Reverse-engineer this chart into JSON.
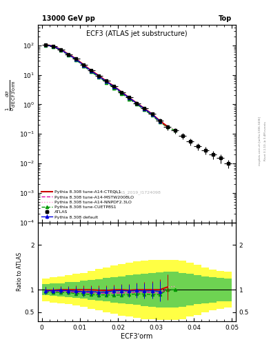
{
  "title_top": "ECF3 (ATLAS jet substructure)",
  "header_left": "13000 GeV pp",
  "header_right": "Top",
  "xlabel": "ECF3'orm",
  "ylabel_ratio": "Ratio to ATLAS",
  "watermark": "ATLAS_2019_I1724098",
  "right_label": "Rivet 3.1.10, ≥ 3.4M events",
  "right_label2": "mcplots.cern.ch [arXiv:1306.3436]",
  "atlas_x": [
    0.001,
    0.003,
    0.005,
    0.007,
    0.009,
    0.011,
    0.013,
    0.015,
    0.017,
    0.019,
    0.021,
    0.023,
    0.025,
    0.027,
    0.029,
    0.031,
    0.033,
    0.035,
    0.037,
    0.039,
    0.041,
    0.043,
    0.045,
    0.047,
    0.049
  ],
  "atlas_y": [
    105,
    95,
    72,
    50,
    35,
    22,
    14,
    9.5,
    6.2,
    4.1,
    2.6,
    1.7,
    1.1,
    0.72,
    0.47,
    0.28,
    0.17,
    0.13,
    0.085,
    0.055,
    0.038,
    0.028,
    0.02,
    0.015,
    0.01
  ],
  "atlas_xerr": [
    0.001,
    0.001,
    0.001,
    0.001,
    0.001,
    0.001,
    0.001,
    0.001,
    0.001,
    0.001,
    0.001,
    0.001,
    0.001,
    0.001,
    0.001,
    0.001,
    0.001,
    0.001,
    0.001,
    0.001,
    0.001,
    0.001,
    0.001,
    0.001,
    0.001
  ],
  "atlas_yerr_lo": [
    8,
    6,
    5,
    4,
    3,
    2.0,
    1.3,
    0.9,
    0.6,
    0.4,
    0.3,
    0.2,
    0.15,
    0.1,
    0.07,
    0.05,
    0.035,
    0.028,
    0.02,
    0.014,
    0.01,
    0.008,
    0.006,
    0.005,
    0.003
  ],
  "atlas_yerr_hi": [
    8,
    6,
    5,
    4,
    3,
    2.0,
    1.3,
    0.9,
    0.6,
    0.4,
    0.3,
    0.2,
    0.15,
    0.1,
    0.07,
    0.05,
    0.035,
    0.028,
    0.02,
    0.014,
    0.01,
    0.008,
    0.006,
    0.005,
    0.003
  ],
  "py_default_x": [
    0.001,
    0.003,
    0.005,
    0.007,
    0.009,
    0.011,
    0.013,
    0.015,
    0.017,
    0.019,
    0.021,
    0.023,
    0.025,
    0.027,
    0.029,
    0.031
  ],
  "py_default_y": [
    103,
    93,
    71,
    49,
    34,
    21,
    13.5,
    9.0,
    5.9,
    4.0,
    2.55,
    1.65,
    1.08,
    0.7,
    0.46,
    0.27
  ],
  "py_default_yerr": [
    4,
    3,
    2.5,
    2,
    1.5,
    1.0,
    0.7,
    0.5,
    0.35,
    0.25,
    0.18,
    0.13,
    0.09,
    0.07,
    0.05,
    0.04
  ],
  "py_cteql1_x": [
    0.001,
    0.003,
    0.005,
    0.007,
    0.009,
    0.011,
    0.013,
    0.015,
    0.017,
    0.019,
    0.021,
    0.023,
    0.025,
    0.027,
    0.029,
    0.031,
    0.033
  ],
  "py_cteql1_y": [
    104,
    94,
    72,
    50,
    35,
    22,
    14,
    9.4,
    6.1,
    4.1,
    2.6,
    1.68,
    1.1,
    0.72,
    0.47,
    0.28,
    0.18
  ],
  "py_cteql1_yerr": [
    3,
    2.5,
    2,
    1.5,
    1.2,
    0.9,
    0.6,
    0.4,
    0.3,
    0.22,
    0.16,
    0.12,
    0.09,
    0.07,
    0.05,
    0.04,
    0.03
  ],
  "py_mstw_x": [
    0.001,
    0.003,
    0.005,
    0.007,
    0.009,
    0.011,
    0.013,
    0.015,
    0.017,
    0.019,
    0.021,
    0.023,
    0.025,
    0.027,
    0.029,
    0.031,
    0.033
  ],
  "py_mstw_y": [
    102,
    91,
    69,
    48,
    33,
    21,
    13,
    8.8,
    5.7,
    3.8,
    2.42,
    1.58,
    1.04,
    0.68,
    0.44,
    0.26,
    0.17
  ],
  "py_nnpdf_x": [
    0.001,
    0.003,
    0.005,
    0.007,
    0.009,
    0.011,
    0.013,
    0.015,
    0.017,
    0.019,
    0.021,
    0.023,
    0.025,
    0.027,
    0.029,
    0.031,
    0.033,
    0.035
  ],
  "py_nnpdf_y": [
    103,
    92,
    70,
    49,
    34,
    21.5,
    13.5,
    9.1,
    5.9,
    3.9,
    2.5,
    1.62,
    1.07,
    0.69,
    0.45,
    0.27,
    0.18,
    0.14
  ],
  "py_cuetp_x": [
    0.001,
    0.003,
    0.005,
    0.007,
    0.009,
    0.011,
    0.013,
    0.015,
    0.017,
    0.019,
    0.021,
    0.023,
    0.025,
    0.027,
    0.029,
    0.031,
    0.033,
    0.035
  ],
  "py_cuetp_y": [
    100,
    90,
    68,
    47,
    32,
    20,
    12.5,
    8.4,
    5.5,
    3.6,
    2.3,
    1.52,
    1.0,
    0.65,
    0.42,
    0.25,
    0.17,
    0.13
  ],
  "ratio_bg_x": [
    0.0,
    0.002,
    0.004,
    0.006,
    0.008,
    0.01,
    0.012,
    0.014,
    0.016,
    0.018,
    0.02,
    0.022,
    0.024,
    0.026,
    0.028,
    0.03,
    0.032,
    0.034,
    0.036,
    0.038,
    0.04,
    0.042,
    0.044,
    0.046,
    0.048,
    0.05
  ],
  "ratio_bg_yellow_lo": [
    0.75,
    0.72,
    0.7,
    0.68,
    0.65,
    0.62,
    0.58,
    0.54,
    0.5,
    0.46,
    0.42,
    0.4,
    0.37,
    0.35,
    0.34,
    0.33,
    0.33,
    0.33,
    0.35,
    0.4,
    0.44,
    0.5,
    0.55,
    0.58,
    0.6,
    0.6
  ],
  "ratio_bg_yellow_hi": [
    1.25,
    1.28,
    1.3,
    1.32,
    1.35,
    1.38,
    1.42,
    1.46,
    1.5,
    1.54,
    1.58,
    1.6,
    1.63,
    1.65,
    1.66,
    1.67,
    1.67,
    1.67,
    1.65,
    1.6,
    1.56,
    1.5,
    1.45,
    1.42,
    1.4,
    1.4
  ],
  "ratio_bg_green_lo": [
    0.88,
    0.86,
    0.85,
    0.83,
    0.82,
    0.8,
    0.78,
    0.76,
    0.74,
    0.72,
    0.7,
    0.68,
    0.66,
    0.64,
    0.62,
    0.61,
    0.6,
    0.6,
    0.62,
    0.65,
    0.68,
    0.7,
    0.72,
    0.74,
    0.75,
    0.75
  ],
  "ratio_bg_green_hi": [
    1.12,
    1.14,
    1.15,
    1.17,
    1.18,
    1.2,
    1.22,
    1.24,
    1.26,
    1.28,
    1.3,
    1.32,
    1.34,
    1.36,
    1.38,
    1.39,
    1.4,
    1.4,
    1.38,
    1.35,
    1.32,
    1.3,
    1.28,
    1.26,
    1.25,
    1.25
  ],
  "colors": {
    "atlas": "black",
    "py_default": "#0000dd",
    "py_cteql1": "#cc0000",
    "py_mstw": "#dd00aa",
    "py_nnpdf": "#ff88cc",
    "py_cuetp": "#009900",
    "yellow_band": "#ffff44",
    "green_band": "#55cc55"
  },
  "ylim_main": [
    0.0001,
    500.0
  ],
  "ylim_ratio": [
    0.3,
    2.5
  ],
  "xlim": [
    -0.001,
    0.051
  ]
}
